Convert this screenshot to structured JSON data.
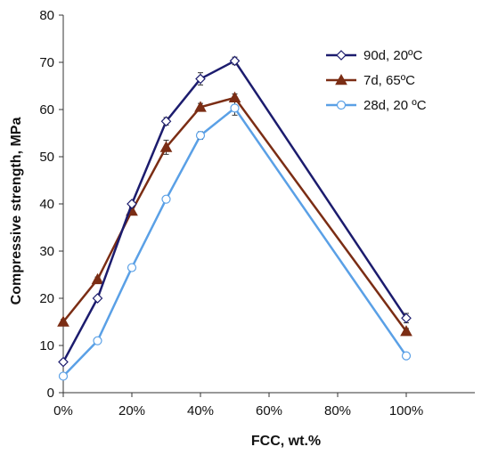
{
  "chart_data": {
    "type": "line",
    "title": "",
    "xlabel": "FCC, wt.%",
    "ylabel": "Compressive strength, MPa",
    "xlim": [
      0,
      120
    ],
    "ylim": [
      0,
      80
    ],
    "x_ticks": [
      0,
      20,
      40,
      60,
      80,
      100
    ],
    "x_tick_labels": [
      "0%",
      "20%",
      "40%",
      "60%",
      "80%",
      "100%"
    ],
    "y_ticks": [
      0,
      10,
      20,
      30,
      40,
      50,
      60,
      70,
      80
    ],
    "y_tick_labels": [
      "0",
      "10",
      "20",
      "30",
      "40",
      "50",
      "60",
      "70",
      "80"
    ],
    "grid": false,
    "legend_position": "top-right",
    "series": [
      {
        "name": "90d, 20ºC",
        "color": "#1c1c6e",
        "marker": "diamond",
        "x": [
          0,
          10,
          20,
          30,
          40,
          50,
          100
        ],
        "y": [
          6.5,
          20,
          40,
          57.5,
          66.5,
          70.3,
          15.8
        ],
        "error": [
          0.5,
          0.5,
          0.5,
          0.8,
          1.3,
          0.8,
          1.0
        ]
      },
      {
        "name": "7d, 65ºC",
        "color": "#7b2d14",
        "marker": "triangle",
        "x": [
          0,
          10,
          20,
          30,
          40,
          50,
          100
        ],
        "y": [
          15,
          24,
          38.5,
          52,
          60.5,
          62.5,
          13
        ],
        "error": [
          0.5,
          0.5,
          0.8,
          1.5,
          0.8,
          0.8,
          0.6
        ]
      },
      {
        "name": "28d, 20 ºC",
        "color": "#5aa0e6",
        "marker": "circle",
        "x": [
          0,
          10,
          20,
          30,
          40,
          50,
          100
        ],
        "y": [
          3.5,
          11,
          26.5,
          41,
          54.5,
          60.3,
          7.8
        ],
        "error": [
          0.3,
          0.3,
          0.5,
          0.6,
          0.8,
          1.5,
          0.4
        ]
      }
    ]
  }
}
